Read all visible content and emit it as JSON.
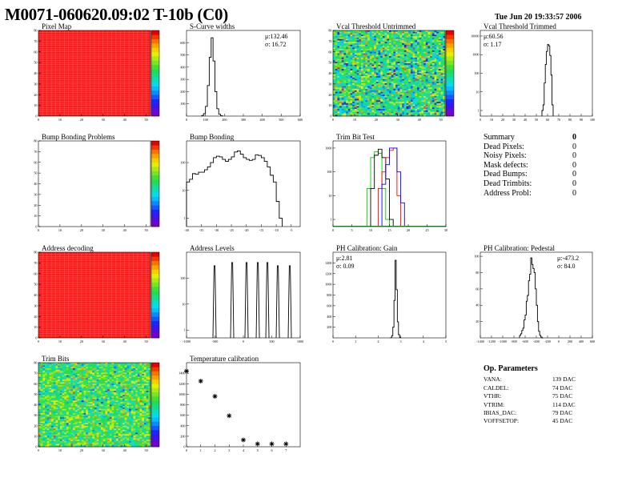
{
  "header": {
    "title": "M0071-060620.09:02 T-10b (C0)",
    "date": "Tue Jun 20 19:33:57 2006"
  },
  "summary": {
    "title": "Summary",
    "total": "0",
    "rows": [
      {
        "label": "Dead Pixels:",
        "value": "0"
      },
      {
        "label": "Noisy Pixels:",
        "value": "0"
      },
      {
        "label": "Mask defects:",
        "value": "0"
      },
      {
        "label": "Dead Bumps:",
        "value": "0"
      },
      {
        "label": "Dead Trimbits:",
        "value": "0"
      },
      {
        "label": "Address Probl:",
        "value": "0"
      }
    ]
  },
  "op_parameters": {
    "title": "Op. Parameters",
    "rows": [
      {
        "label": "VANA:",
        "value": "139 DAC"
      },
      {
        "label": "CALDEL:",
        "value": "74 DAC"
      },
      {
        "label": "VTHR:",
        "value": "75 DAC"
      },
      {
        "label": "VTRIM:",
        "value": "114 DAC"
      },
      {
        "label": "IBIAS_DAC:",
        "value": "79 DAC"
      },
      {
        "label": "VOFFSETOP:",
        "value": "45 DAC"
      }
    ]
  },
  "colors": {
    "hist_line": "#000000",
    "trim_series": [
      "#00cc00",
      "#000000",
      "#ff0000",
      "#0000ff"
    ]
  },
  "chart_data": [
    {
      "id": "pixel_map",
      "type": "heatmap",
      "title": "Pixel Map",
      "fill": "uniform",
      "color": "#ff1a1a",
      "xlim": [
        0,
        52
      ],
      "ylim": [
        0,
        80
      ],
      "xticks": [
        0,
        10,
        20,
        30,
        40,
        50
      ],
      "yticks": [
        0,
        10,
        20,
        30,
        40,
        50,
        60,
        70,
        80
      ],
      "colorbar": true
    },
    {
      "id": "s_curve",
      "type": "bar",
      "title": "S-Curve widths",
      "stats": [
        "μ:132.46",
        "σ: 16.72"
      ],
      "stats_pos": "top-right",
      "xlim": [
        0,
        600
      ],
      "ylim": [
        0,
        700
      ],
      "xticks": [
        0,
        100,
        200,
        300,
        400,
        500,
        600
      ],
      "yticks": [
        100,
        200,
        300,
        400,
        500,
        600
      ],
      "bins": {
        "start": 80,
        "width": 10,
        "counts": [
          5,
          20,
          80,
          250,
          480,
          640,
          450,
          200,
          60,
          15,
          3
        ]
      }
    },
    {
      "id": "vcal_untrimmed",
      "type": "heatmap",
      "title": "Vcal Threshold Untrimmed",
      "fill": "noise",
      "level": 0.5,
      "spread": 0.22,
      "xlim": [
        0,
        52
      ],
      "ylim": [
        0,
        80
      ],
      "xticks": [
        0,
        10,
        20,
        30,
        40,
        50
      ],
      "yticks": [
        0,
        10,
        20,
        30,
        40,
        50,
        60,
        70,
        80
      ],
      "colorbar": true
    },
    {
      "id": "vcal_trimmed",
      "type": "bar",
      "title": "Vcal Threshold Trimmed",
      "stats": [
        "μ:60.56",
        "σ: 1.17"
      ],
      "stats_pos": "top-left",
      "log": true,
      "xlim": [
        0,
        100
      ],
      "ylim": [
        0.5,
        20000
      ],
      "xticks": [
        0,
        10,
        20,
        30,
        40,
        50,
        60,
        70,
        80,
        90,
        100
      ],
      "yticks": [
        1,
        10,
        100,
        1000,
        10000
      ],
      "bins": {
        "start": 55,
        "width": 1,
        "counts": [
          1,
          2,
          30,
          300,
          1500,
          3500,
          3000,
          900,
          80,
          2
        ]
      }
    },
    {
      "id": "bump_problems",
      "type": "heatmap",
      "title": "Bump Bonding Problems",
      "fill": "empty",
      "xlim": [
        0,
        52
      ],
      "ylim": [
        0,
        80
      ],
      "xticks": [
        0,
        10,
        20,
        30,
        40,
        50
      ],
      "yticks": [
        0,
        10,
        20,
        30,
        40,
        50,
        60,
        70,
        80
      ],
      "colorbar": true
    },
    {
      "id": "bump_bonding",
      "type": "bar",
      "title": "Bump Bonding",
      "log": true,
      "xlim": [
        -40,
        -2
      ],
      "ylim": [
        0.5,
        600
      ],
      "xticks": [
        -40,
        -35,
        -30,
        -25,
        -20,
        -15,
        -10,
        -5
      ],
      "yticks": [
        1,
        10,
        100
      ],
      "bins": {
        "start": -40,
        "width": 1,
        "counts": [
          20,
          25,
          40,
          38,
          45,
          45,
          55,
          70,
          100,
          150,
          170,
          160,
          130,
          110,
          130,
          160,
          240,
          260,
          200,
          150,
          130,
          120,
          130,
          190,
          180,
          150,
          110,
          70,
          35,
          20,
          4,
          1
        ]
      }
    },
    {
      "id": "trim_bit_test",
      "type": "bar",
      "title": "Trim Bit Test",
      "log": true,
      "xlim": [
        0,
        30
      ],
      "ylim": [
        0.5,
        2000
      ],
      "xticks": [
        0,
        5,
        10,
        15,
        20,
        25,
        30
      ],
      "yticks": [
        1,
        10,
        100,
        1000
      ],
      "series": [
        {
          "start": 9,
          "width": 1,
          "counts": [
            20,
            400,
            700,
            600,
            20,
            1
          ]
        },
        {
          "start": 10,
          "width": 1,
          "counts": [
            20,
            500,
            900,
            400,
            50,
            1
          ]
        },
        {
          "start": 12,
          "width": 1,
          "counts": [
            20,
            100,
            400,
            800,
            1000,
            10
          ]
        },
        {
          "start": 13,
          "width": 1,
          "counts": [
            30,
            200,
            1000,
            1000,
            100,
            5
          ]
        }
      ]
    },
    {
      "id": "address_decoding",
      "type": "heatmap",
      "title": "Address decoding",
      "fill": "uniform",
      "color": "#ff1a1a",
      "xlim": [
        0,
        52
      ],
      "ylim": [
        0,
        80
      ],
      "xticks": [
        0,
        10,
        20,
        30,
        40,
        50
      ],
      "yticks": [
        0,
        10,
        20,
        30,
        40,
        50,
        60,
        70,
        80
      ],
      "colorbar": true
    },
    {
      "id": "address_levels",
      "type": "bar",
      "title": "Address Levels",
      "log": true,
      "xlim": [
        -1000,
        1000
      ],
      "ylim": [
        0.5,
        1000
      ],
      "xticks": [
        -1000,
        -500,
        0,
        500,
        1000
      ],
      "yticks": [
        1,
        10,
        100
      ],
      "spikes": [
        {
          "x": -507,
          "y": 300
        },
        {
          "x": -197,
          "y": 400
        },
        {
          "x": 56,
          "y": 400
        },
        {
          "x": 254,
          "y": 400
        },
        {
          "x": 423,
          "y": 400
        },
        {
          "x": 606,
          "y": 300
        },
        {
          "x": 817,
          "y": 300
        }
      ]
    },
    {
      "id": "ph_gain",
      "type": "bar",
      "title": "PH Calibration: Gain",
      "stats": [
        "μ:2.81",
        "σ: 0.09"
      ],
      "stats_pos": "top-left",
      "xlim": [
        0,
        5
      ],
      "ylim": [
        0,
        1600
      ],
      "xticks": [
        0,
        1,
        2,
        3,
        4,
        5
      ],
      "yticks": [
        200,
        400,
        600,
        800,
        1000,
        1200,
        1400
      ],
      "bins": {
        "start": 2.55,
        "width": 0.05,
        "counts": [
          5,
          40,
          200,
          700,
          1450,
          900,
          300,
          60,
          8
        ]
      }
    },
    {
      "id": "ph_pedestal",
      "type": "bar",
      "title": "PH Calibration: Pedestal",
      "stats": [
        "μ:-473.2",
        "σ: 84.0"
      ],
      "stats_pos": "top-right",
      "xlim": [
        -1400,
        600
      ],
      "ylim": [
        0,
        105
      ],
      "xticks": [
        -1400,
        -1200,
        -1000,
        -800,
        -600,
        -400,
        -200,
        0,
        200,
        400,
        600
      ],
      "yticks": [
        20,
        40,
        60,
        80,
        100
      ],
      "bins": {
        "start": -700,
        "width": 20,
        "counts": [
          3,
          5,
          9,
          12,
          22,
          28,
          45,
          52,
          70,
          78,
          98,
          90,
          85,
          80,
          60,
          40,
          20,
          8,
          3,
          1,
          0
        ]
      }
    },
    {
      "id": "trim_bits",
      "type": "heatmap",
      "title": "Trim Bits",
      "fill": "noise",
      "level": 0.55,
      "spread": 0.18,
      "xlim": [
        0,
        52
      ],
      "ylim": [
        0,
        80
      ],
      "xticks": [
        0,
        10,
        20,
        30,
        40,
        50
      ],
      "yticks": [
        0,
        10,
        20,
        30,
        40,
        50,
        60,
        70,
        80
      ],
      "colorbar": true
    },
    {
      "id": "temperature",
      "type": "scatter",
      "title": "Temperature calibration",
      "xlim": [
        0,
        8
      ],
      "ylim": [
        0,
        1600
      ],
      "xticks": [
        0,
        1,
        2,
        3,
        4,
        5,
        6,
        7
      ],
      "yticks": [
        0,
        200,
        400,
        600,
        800,
        1000,
        1200,
        1400
      ],
      "x": [
        0,
        1,
        2,
        3,
        4,
        5,
        6,
        7
      ],
      "y": [
        1440,
        1250,
        960,
        590,
        130,
        55,
        55,
        55
      ]
    }
  ]
}
